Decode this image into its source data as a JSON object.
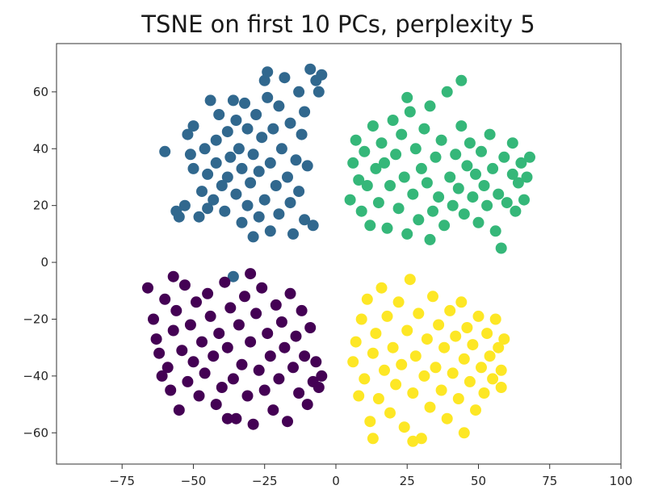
{
  "chart_data": {
    "type": "scatter",
    "title": "TSNE on first 10 PCs, perplexity 5",
    "xlabel": "",
    "ylabel": "",
    "xlim": [
      -98,
      100
    ],
    "ylim": [
      -71,
      77
    ],
    "x_ticks": [
      -75,
      -50,
      -25,
      0,
      25,
      50,
      75,
      100
    ],
    "x_tick_labels": [
      "−75",
      "−50",
      "−25",
      "0",
      "25",
      "50",
      "75",
      "100"
    ],
    "y_ticks": [
      -60,
      -40,
      -20,
      0,
      20,
      40,
      60
    ],
    "y_tick_labels": [
      "−60",
      "−40",
      "−20",
      "0",
      "20",
      "40",
      "60"
    ],
    "grid": false,
    "legend": false,
    "series": [
      {
        "color": "#31688e",
        "points": [
          [
            -60,
            39
          ],
          [
            -55,
            16
          ],
          [
            -53,
            20
          ],
          [
            -52,
            45
          ],
          [
            -51,
            38
          ],
          [
            -50,
            33
          ],
          [
            -48,
            16
          ],
          [
            -47,
            25
          ],
          [
            -46,
            40
          ],
          [
            -45,
            19
          ],
          [
            -45,
            31
          ],
          [
            -44,
            57
          ],
          [
            -43,
            22
          ],
          [
            -42,
            43
          ],
          [
            -42,
            35
          ],
          [
            -41,
            52
          ],
          [
            -40,
            27
          ],
          [
            -39,
            18
          ],
          [
            -38,
            46
          ],
          [
            -38,
            30
          ],
          [
            -37,
            37
          ],
          [
            -36,
            57
          ],
          [
            -35,
            24
          ],
          [
            -35,
            50
          ],
          [
            -34,
            40
          ],
          [
            -33,
            14
          ],
          [
            -33,
            33
          ],
          [
            -32,
            56
          ],
          [
            -31,
            20
          ],
          [
            -31,
            47
          ],
          [
            -30,
            28
          ],
          [
            -29,
            9
          ],
          [
            -29,
            38
          ],
          [
            -28,
            52
          ],
          [
            -27,
            16
          ],
          [
            -27,
            32
          ],
          [
            -26,
            44
          ],
          [
            -25,
            22
          ],
          [
            -25,
            64
          ],
          [
            -24,
            58
          ],
          [
            -23,
            35
          ],
          [
            -23,
            11
          ],
          [
            -22,
            47
          ],
          [
            -21,
            27
          ],
          [
            -20,
            55
          ],
          [
            -20,
            17
          ],
          [
            -19,
            40
          ],
          [
            -18,
            65
          ],
          [
            -17,
            30
          ],
          [
            -16,
            21
          ],
          [
            -16,
            49
          ],
          [
            -15,
            10
          ],
          [
            -14,
            36
          ],
          [
            -13,
            60
          ],
          [
            -13,
            25
          ],
          [
            -12,
            45
          ],
          [
            -11,
            15
          ],
          [
            -11,
            53
          ],
          [
            -10,
            34
          ],
          [
            -9,
            68
          ],
          [
            -8,
            13
          ],
          [
            -7,
            64
          ],
          [
            -6,
            60
          ],
          [
            -5,
            66
          ],
          [
            -24,
            67
          ],
          [
            -50,
            48
          ],
          [
            -56,
            18
          ],
          [
            -36,
            -5
          ]
        ]
      },
      {
        "color": "#35b779",
        "points": [
          [
            5,
            22
          ],
          [
            6,
            35
          ],
          [
            7,
            43
          ],
          [
            8,
            29
          ],
          [
            9,
            18
          ],
          [
            10,
            39
          ],
          [
            11,
            27
          ],
          [
            12,
            13
          ],
          [
            13,
            48
          ],
          [
            14,
            33
          ],
          [
            15,
            21
          ],
          [
            16,
            42
          ],
          [
            17,
            35
          ],
          [
            18,
            12
          ],
          [
            19,
            27
          ],
          [
            20,
            50
          ],
          [
            21,
            38
          ],
          [
            22,
            19
          ],
          [
            23,
            45
          ],
          [
            24,
            30
          ],
          [
            25,
            10
          ],
          [
            26,
            53
          ],
          [
            27,
            24
          ],
          [
            28,
            40
          ],
          [
            29,
            15
          ],
          [
            30,
            33
          ],
          [
            31,
            47
          ],
          [
            32,
            28
          ],
          [
            33,
            55
          ],
          [
            34,
            18
          ],
          [
            35,
            37
          ],
          [
            36,
            23
          ],
          [
            37,
            43
          ],
          [
            38,
            13
          ],
          [
            39,
            60
          ],
          [
            40,
            30
          ],
          [
            41,
            20
          ],
          [
            42,
            38
          ],
          [
            43,
            26
          ],
          [
            44,
            48
          ],
          [
            45,
            17
          ],
          [
            46,
            34
          ],
          [
            47,
            42
          ],
          [
            48,
            23
          ],
          [
            49,
            31
          ],
          [
            50,
            14
          ],
          [
            51,
            39
          ],
          [
            52,
            27
          ],
          [
            53,
            20
          ],
          [
            54,
            45
          ],
          [
            55,
            33
          ],
          [
            56,
            11
          ],
          [
            57,
            24
          ],
          [
            58,
            5
          ],
          [
            59,
            37
          ],
          [
            60,
            21
          ],
          [
            62,
            31
          ],
          [
            63,
            18
          ],
          [
            64,
            28
          ],
          [
            65,
            35
          ],
          [
            66,
            22
          ],
          [
            67,
            30
          ],
          [
            68,
            37
          ],
          [
            44,
            64
          ],
          [
            25,
            58
          ],
          [
            33,
            8
          ],
          [
            62,
            42
          ]
        ]
      },
      {
        "color": "#440154",
        "points": [
          [
            -66,
            -9
          ],
          [
            -64,
            -20
          ],
          [
            -63,
            -27
          ],
          [
            -62,
            -32
          ],
          [
            -61,
            -40
          ],
          [
            -60,
            -13
          ],
          [
            -59,
            -37
          ],
          [
            -58,
            -45
          ],
          [
            -57,
            -24
          ],
          [
            -56,
            -17
          ],
          [
            -55,
            -52
          ],
          [
            -54,
            -31
          ],
          [
            -53,
            -8
          ],
          [
            -52,
            -42
          ],
          [
            -51,
            -22
          ],
          [
            -50,
            -35
          ],
          [
            -49,
            -14
          ],
          [
            -48,
            -47
          ],
          [
            -47,
            -28
          ],
          [
            -46,
            -39
          ],
          [
            -45,
            -11
          ],
          [
            -44,
            -19
          ],
          [
            -43,
            -33
          ],
          [
            -42,
            -50
          ],
          [
            -41,
            -25
          ],
          [
            -40,
            -44
          ],
          [
            -39,
            -7
          ],
          [
            -38,
            -30
          ],
          [
            -37,
            -16
          ],
          [
            -36,
            -41
          ],
          [
            -35,
            -55
          ],
          [
            -34,
            -22
          ],
          [
            -33,
            -36
          ],
          [
            -32,
            -12
          ],
          [
            -31,
            -47
          ],
          [
            -30,
            -28
          ],
          [
            -29,
            -57
          ],
          [
            -28,
            -18
          ],
          [
            -27,
            -38
          ],
          [
            -26,
            -9
          ],
          [
            -25,
            -45
          ],
          [
            -24,
            -25
          ],
          [
            -23,
            -33
          ],
          [
            -22,
            -52
          ],
          [
            -21,
            -15
          ],
          [
            -20,
            -41
          ],
          [
            -19,
            -21
          ],
          [
            -18,
            -30
          ],
          [
            -17,
            -56
          ],
          [
            -16,
            -11
          ],
          [
            -15,
            -37
          ],
          [
            -14,
            -26
          ],
          [
            -13,
            -46
          ],
          [
            -12,
            -17
          ],
          [
            -11,
            -33
          ],
          [
            -10,
            -50
          ],
          [
            -9,
            -23
          ],
          [
            -8,
            -42
          ],
          [
            -7,
            -35
          ],
          [
            -6,
            -44
          ],
          [
            -5,
            -40
          ],
          [
            -30,
            -4
          ],
          [
            -38,
            -55
          ],
          [
            -57,
            -5
          ]
        ]
      },
      {
        "color": "#fde725",
        "points": [
          [
            6,
            -35
          ],
          [
            7,
            -28
          ],
          [
            8,
            -47
          ],
          [
            9,
            -20
          ],
          [
            10,
            -41
          ],
          [
            11,
            -13
          ],
          [
            12,
            -56
          ],
          [
            13,
            -32
          ],
          [
            14,
            -25
          ],
          [
            15,
            -48
          ],
          [
            16,
            -9
          ],
          [
            17,
            -38
          ],
          [
            18,
            -19
          ],
          [
            19,
            -53
          ],
          [
            20,
            -30
          ],
          [
            21,
            -43
          ],
          [
            22,
            -14
          ],
          [
            23,
            -36
          ],
          [
            24,
            -58
          ],
          [
            25,
            -24
          ],
          [
            26,
            -6
          ],
          [
            27,
            -46
          ],
          [
            28,
            -33
          ],
          [
            29,
            -18
          ],
          [
            30,
            -62
          ],
          [
            31,
            -40
          ],
          [
            32,
            -27
          ],
          [
            33,
            -51
          ],
          [
            34,
            -12
          ],
          [
            35,
            -37
          ],
          [
            36,
            -22
          ],
          [
            37,
            -45
          ],
          [
            38,
            -30
          ],
          [
            39,
            -55
          ],
          [
            40,
            -17
          ],
          [
            41,
            -39
          ],
          [
            42,
            -26
          ],
          [
            43,
            -48
          ],
          [
            44,
            -14
          ],
          [
            45,
            -34
          ],
          [
            46,
            -23
          ],
          [
            47,
            -42
          ],
          [
            48,
            -29
          ],
          [
            49,
            -52
          ],
          [
            50,
            -19
          ],
          [
            51,
            -37
          ],
          [
            52,
            -46
          ],
          [
            53,
            -25
          ],
          [
            54,
            -33
          ],
          [
            55,
            -41
          ],
          [
            56,
            -20
          ],
          [
            57,
            -30
          ],
          [
            58,
            -38
          ],
          [
            59,
            -27
          ],
          [
            13,
            -62
          ],
          [
            27,
            -63
          ],
          [
            45,
            -60
          ],
          [
            58,
            -44
          ]
        ]
      }
    ]
  }
}
